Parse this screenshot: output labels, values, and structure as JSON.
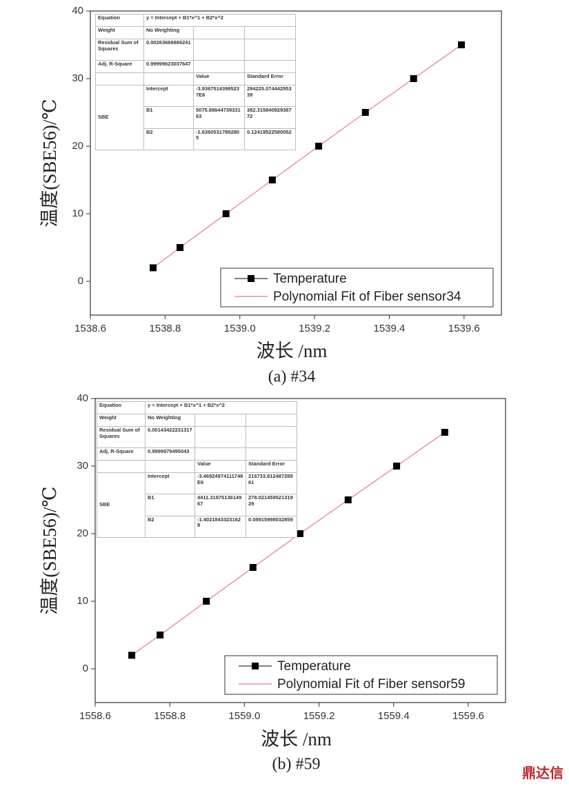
{
  "chart_data": [
    {
      "type": "scatter",
      "caption": "(a) #34",
      "xlabel": "波长 /nm",
      "ylabel": "温度(SBE56)/℃",
      "x": [
        1538.768,
        1538.84,
        1538.963,
        1539.087,
        1539.211,
        1539.336,
        1539.465,
        1539.593
      ],
      "series": [
        {
          "name": "Temperature",
          "type": "scatter",
          "color": "#000000",
          "values": [
            2,
            5,
            10,
            15,
            20,
            25,
            30,
            35
          ]
        },
        {
          "name": "Polynomial Fit of Fiber sensor34",
          "type": "line",
          "color": "#e8949e",
          "values": [
            2,
            5,
            10,
            15,
            20,
            25,
            30,
            35
          ]
        }
      ],
      "xlim": [
        1538.6,
        1539.7
      ],
      "xticks": [
        1538.6,
        1538.8,
        {
          "value": 1539,
          "label": "1539.0"
        },
        1539.2,
        1539.4,
        1539.6
      ],
      "ylim": [
        -5,
        40
      ],
      "yticks": [
        0,
        10,
        20,
        30,
        40
      ],
      "legend": "lower right",
      "fit_table": {
        "rows": [
          [
            "Equation",
            "y = Intercept + B1*x^1 + B2*x^2"
          ],
          [
            "Weight",
            "No Weighting"
          ],
          [
            "Residual Sum of Squares",
            "0.00263666886241"
          ],
          [
            "Adj. R-Square",
            "0.99999623037647"
          ]
        ],
        "param_header": [
          "Value",
          "Standard Error"
        ],
        "group": "SBE",
        "params": [
          [
            "Intercept",
            "-3.93675143995237E6",
            "294225.07444255339"
          ],
          [
            "B1",
            "5075.8864473933163",
            "382.31584092938772"
          ],
          [
            "B2",
            "-1.63605317892805",
            "0.12419522580052"
          ]
        ]
      }
    },
    {
      "type": "scatter",
      "caption": "(b) #59",
      "xlabel": "波长 /nm",
      "ylabel": "温度(SBE56)/℃",
      "x": [
        1558.698,
        1558.774,
        1558.898,
        1559.023,
        1559.149,
        1559.278,
        1559.408,
        1559.537
      ],
      "series": [
        {
          "name": "Temperature",
          "type": "scatter",
          "color": "#000000",
          "values": [
            2,
            5,
            10,
            15,
            20,
            25,
            30,
            35
          ]
        },
        {
          "name": "Polynomial Fit of Fiber sensor59",
          "type": "line",
          "color": "#e8949e",
          "values": [
            2,
            5,
            10,
            15,
            20,
            25,
            30,
            35
          ]
        }
      ],
      "xlim": [
        1558.6,
        1559.7
      ],
      "xticks": [
        1558.6,
        1558.8,
        {
          "value": 1559,
          "label": "1559.0"
        },
        1559.2,
        1559.4,
        1559.6
      ],
      "ylim": [
        -5,
        40
      ],
      "yticks": [
        0,
        10,
        20,
        30,
        40
      ],
      "legend": "lower right",
      "fit_table": {
        "rows": [
          [
            "Equation",
            "y = Intercept + B1*x^1 + B2*x^2"
          ],
          [
            "Weight",
            "No Weighting"
          ],
          [
            "Residual Sum of Squares",
            "0.00143422231317"
          ],
          [
            "Adj. R-Square",
            "0.9999979495043"
          ]
        ],
        "param_header": [
          "Value",
          "Standard Error"
        ],
        "group": "SBE",
        "params": [
          [
            "Intercept",
            "-3.46924974111748E6",
            "216733.81248728861"
          ],
          [
            "B1",
            "4411.3187513614967",
            "278.02145952131929"
          ],
          [
            "B2",
            "-1.40218433231628",
            "0.08915998032859"
          ]
        ]
      }
    }
  ],
  "watermark": "鼎达信"
}
